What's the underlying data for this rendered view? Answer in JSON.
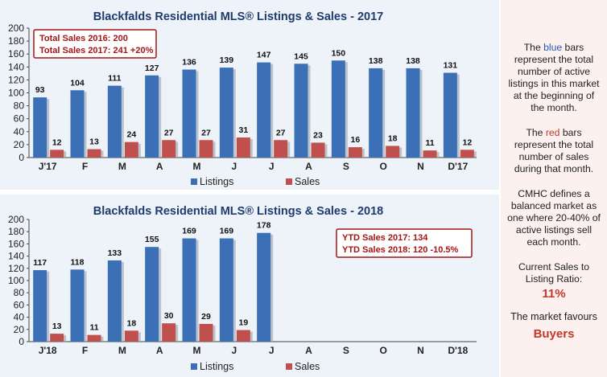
{
  "chart_data": [
    {
      "type": "bar",
      "title": "Blackfalds Residential MLS® Listings & Sales - 2017",
      "categories": [
        "J'17",
        "F",
        "M",
        "A",
        "M",
        "J",
        "J",
        "A",
        "S",
        "O",
        "N",
        "D'17"
      ],
      "series": [
        {
          "name": "Listings",
          "color": "#3b6fb6",
          "values": [
            93,
            104,
            111,
            127,
            136,
            139,
            147,
            145,
            150,
            138,
            138,
            131
          ]
        },
        {
          "name": "Sales",
          "color": "#c0504d",
          "values": [
            12,
            13,
            24,
            27,
            27,
            31,
            27,
            23,
            16,
            18,
            11,
            12
          ]
        }
      ],
      "yticks": [
        "0",
        "20",
        "40",
        "60",
        "80",
        "100",
        "120",
        "140",
        "160",
        "180",
        "200"
      ],
      "ylim": [
        0,
        200
      ],
      "legend_position": "bottom-center",
      "annotation_lines": [
        "Total Sales 2016: 200",
        "Total Sales 2017: 241 +20%"
      ],
      "annotation_position": "top-left"
    },
    {
      "type": "bar",
      "title": "Blackfalds Residential MLS® Listings & Sales - 2018",
      "categories": [
        "J'18",
        "F",
        "M",
        "A",
        "M",
        "J",
        "J",
        "A",
        "S",
        "O",
        "N",
        "D'18"
      ],
      "series": [
        {
          "name": "Listings",
          "color": "#3b6fb6",
          "values": [
            117,
            118,
            133,
            155,
            169,
            169,
            178,
            null,
            null,
            null,
            null,
            null
          ]
        },
        {
          "name": "Sales",
          "color": "#c0504d",
          "values": [
            13,
            11,
            18,
            30,
            29,
            19,
            null,
            null,
            null,
            null,
            null,
            null
          ]
        }
      ],
      "yticks": [
        "0",
        "20",
        "40",
        "60",
        "80",
        "100",
        "120",
        "140",
        "160",
        "180",
        "200"
      ],
      "ylim": [
        0,
        200
      ],
      "legend_position": "bottom-center",
      "annotation_lines": [
        "YTD Sales 2017: 134",
        "YTD Sales 2018: 120 -10.5%"
      ],
      "annotation_position": "top-right"
    }
  ],
  "sidebar": {
    "p1_pre": "The ",
    "p1_color_word": "blue",
    "p1_post": " bars represent the total number of active listings in this market at the beginning of the month.",
    "p2_pre": "The ",
    "p2_color_word": "red",
    "p2_post": " bars represent the total number of sales during that month.",
    "p3": "CMHC defines a balanced market as one where 20-40% of active listings sell each month.",
    "p4": "Current Sales to Listing Ratio:",
    "ratio": "11%",
    "p5": "The market favours",
    "favours": "Buyers"
  },
  "colors": {
    "listings": "#3b6fb6",
    "sales": "#c0504d",
    "title": "#1f3b6e",
    "annotation_border": "#a31515",
    "annotation_text": "#a31515"
  }
}
